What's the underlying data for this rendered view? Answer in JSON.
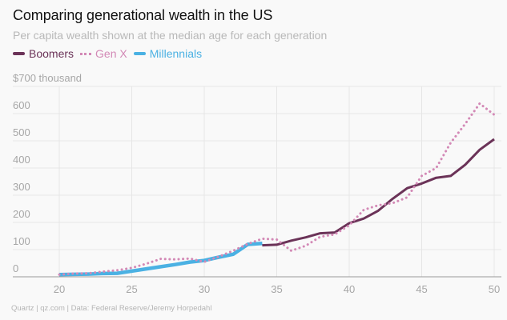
{
  "header": {
    "title": "Comparing generational wealth in the US",
    "subtitle": "Per capita wealth shown at the median age for each generation"
  },
  "legend": [
    {
      "name": "Boomers",
      "color": "#6b3358",
      "style": "solid"
    },
    {
      "name": "Gen X",
      "color": "#d389b6",
      "style": "dotted"
    },
    {
      "name": "Millennials",
      "color": "#4bb1e3",
      "style": "solid"
    }
  ],
  "footer": "Quartz | qz.com | Data: Federal Reserve/Jeremy Horpedahl",
  "chart_data": {
    "type": "line",
    "title": "Comparing generational wealth in the US",
    "subtitle": "Per capita wealth shown at the median age for each generation",
    "xlabel": "",
    "ylabel": "$ thousand",
    "xlim": [
      17,
      50
    ],
    "ylim": [
      0,
      700
    ],
    "x_ticks": [
      20,
      25,
      30,
      35,
      40,
      45,
      50
    ],
    "y_ticks": [
      0,
      100,
      200,
      300,
      400,
      500,
      600,
      700
    ],
    "y_tick_labels": [
      "0",
      "100",
      "200",
      "300",
      "400",
      "500",
      "600",
      "$700 thousand"
    ],
    "grid": true,
    "legend_position": "top-left",
    "series": [
      {
        "name": "Boomers",
        "color": "#6b3358",
        "style": "solid",
        "x": [
          34,
          35,
          36,
          37,
          38,
          39,
          40,
          41,
          42,
          43,
          44,
          45,
          46,
          47,
          48,
          49,
          50
        ],
        "values": [
          116,
          118,
          133,
          145,
          160,
          163,
          197,
          214,
          243,
          287,
          326,
          343,
          364,
          371,
          412,
          467,
          506
        ]
      },
      {
        "name": "Gen X",
        "color": "#d389b6",
        "style": "dotted",
        "x": [
          20,
          21,
          22,
          23,
          24,
          25,
          26,
          27,
          28,
          29,
          30,
          31,
          32,
          33,
          34,
          35,
          36,
          37,
          38,
          39,
          40,
          41,
          42,
          43,
          44,
          45,
          46,
          47,
          48,
          49,
          50
        ],
        "values": [
          8,
          12,
          13,
          19,
          24,
          33,
          48,
          66,
          64,
          67,
          55,
          74,
          96,
          121,
          140,
          137,
          96,
          114,
          147,
          156,
          189,
          246,
          263,
          271,
          292,
          371,
          400,
          493,
          562,
          637,
          596
        ]
      },
      {
        "name": "Millennials",
        "color": "#4bb1e3",
        "style": "solid",
        "x": [
          20,
          21,
          22,
          23,
          24,
          25,
          26,
          27,
          28,
          29,
          30,
          31,
          32,
          33,
          34
        ],
        "values": [
          8,
          9,
          10,
          12,
          13,
          21,
          29,
          37,
          45,
          54,
          60,
          72,
          83,
          119,
          123
        ]
      }
    ]
  }
}
